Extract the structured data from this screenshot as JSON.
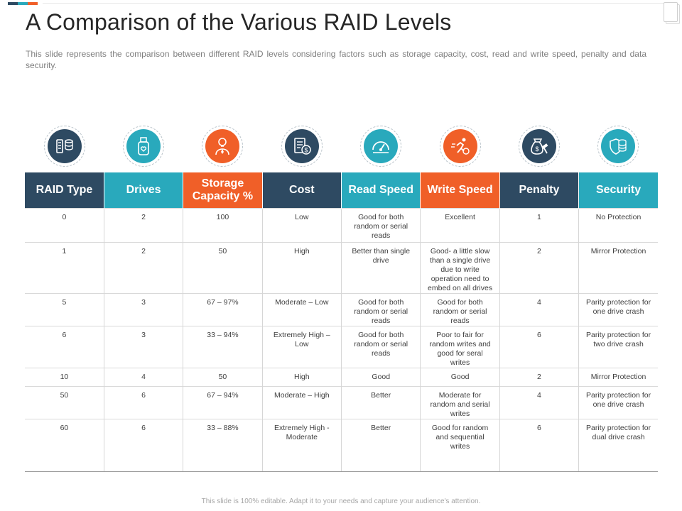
{
  "title": "A Comparison of the Various RAID Levels",
  "subtitle": "This slide represents the comparison between different RAID levels considering factors such as storage capacity, cost, read and write speed, penalty and data security.",
  "footer": "This slide is 100% editable. Adapt it to your needs and capture your audience's attention.",
  "colors": {
    "navy": "#2e4a62",
    "teal": "#29a9bc",
    "orange": "#f05f28",
    "accent_bar": [
      "#2e4a62",
      "#29a9bc",
      "#f05f28"
    ]
  },
  "icons": [
    {
      "name": "server-network-icon",
      "color": "navy"
    },
    {
      "name": "usb-drive-icon",
      "color": "teal"
    },
    {
      "name": "idea-person-icon",
      "color": "orange"
    },
    {
      "name": "invoice-cost-icon",
      "color": "navy"
    },
    {
      "name": "speedometer-icon",
      "color": "teal"
    },
    {
      "name": "running-speed-icon",
      "color": "orange"
    },
    {
      "name": "money-gavel-icon",
      "color": "navy"
    },
    {
      "name": "shield-database-icon",
      "color": "teal"
    }
  ],
  "table": {
    "headers": [
      {
        "label": "RAID Type",
        "color": "navy"
      },
      {
        "label": "Drives",
        "color": "teal"
      },
      {
        "label": "Storage Capacity %",
        "color": "orange"
      },
      {
        "label": "Cost",
        "color": "navy"
      },
      {
        "label": "Read Speed",
        "color": "teal"
      },
      {
        "label": "Write Speed",
        "color": "orange"
      },
      {
        "label": "Penalty",
        "color": "navy"
      },
      {
        "label": "Security",
        "color": "teal"
      }
    ],
    "rows": [
      [
        "0",
        "2",
        "100",
        "Low",
        "Good for both random or serial reads",
        "Excellent",
        "1",
        "No Protection"
      ],
      [
        "1",
        "2",
        "50",
        "High",
        "Better than single drive",
        "Good- a little slow than a single drive due to write operation need to embed on all drives",
        "2",
        "Mirror Protection"
      ],
      [
        "5",
        "3",
        "67 – 97%",
        "Moderate – Low",
        "Good for both random or serial reads",
        "Good for both random or serial reads",
        "4",
        "Parity protection for one drive crash"
      ],
      [
        "6",
        "3",
        "33 – 94%",
        "Extremely High – Low",
        "Good for both random or serial reads",
        "Poor to fair for random writes and good for seral writes",
        "6",
        "Parity protection for two drive crash"
      ],
      [
        "10",
        "4",
        "50",
        "High",
        "Good",
        "Good",
        "2",
        "Mirror Protection"
      ],
      [
        "50",
        "6",
        "67 – 94%",
        "Moderate – High",
        "Better",
        "Moderate for random and serial writes",
        "4",
        "Parity protection for one drive crash"
      ],
      [
        "60",
        "6",
        "33 – 88%",
        "Extremely High - Moderate",
        "Better",
        "Good for random and sequential writes",
        "6",
        "Parity protection for dual drive crash"
      ]
    ]
  }
}
